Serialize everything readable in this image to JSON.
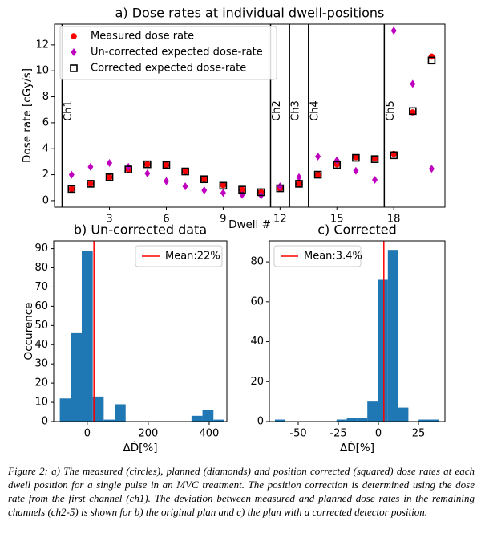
{
  "chart_data": [
    {
      "type": "scatter",
      "title": "a) Dose rates at individual dwell-positions",
      "x_label": "Dwell #",
      "y_label": "Dose rate [cGy/s]",
      "x": [
        1,
        2,
        3,
        4,
        5,
        6,
        7,
        8,
        9,
        10,
        11,
        12,
        13,
        14,
        15,
        16,
        17,
        18,
        19,
        20
      ],
      "series": [
        {
          "name": "Measured dose rate",
          "color": "#ff0000",
          "marker": "circle",
          "values": [
            0.9,
            1.3,
            1.8,
            2.4,
            2.8,
            2.75,
            2.25,
            1.65,
            1.2,
            0.85,
            0.65,
            0.95,
            1.3,
            2.0,
            2.8,
            3.35,
            3.25,
            3.6,
            6.8,
            11.1
          ]
        },
        {
          "name": "Un-corrected expected dose-rate",
          "color": "#bf00bf",
          "marker": "diamond",
          "values": [
            2.0,
            2.6,
            2.9,
            2.6,
            2.1,
            1.5,
            1.1,
            0.8,
            0.6,
            0.45,
            0.4,
            1.1,
            1.8,
            3.4,
            3.1,
            2.3,
            1.6,
            13.1,
            9.0,
            2.45
          ]
        },
        {
          "name": "Corrected expected dose-rate",
          "color": "#000000",
          "marker": "square",
          "values": [
            0.9,
            1.3,
            1.8,
            2.4,
            2.8,
            2.75,
            2.25,
            1.65,
            1.15,
            0.85,
            0.65,
            0.95,
            1.3,
            2.0,
            2.75,
            3.3,
            3.2,
            3.5,
            6.9,
            10.8
          ]
        }
      ],
      "xlim": [
        0.1,
        20.7
      ],
      "ylim": [
        -0.5,
        13.6
      ],
      "xticks": [
        3,
        6,
        9,
        12,
        15,
        18
      ],
      "yticks": [
        0,
        2,
        4,
        6,
        8,
        10,
        12
      ],
      "legend": "upper left",
      "channels": [
        {
          "x": 0.5,
          "label": "Ch1"
        },
        {
          "x": 11.5,
          "label": "Ch2"
        },
        {
          "x": 12.5,
          "label": "Ch3"
        },
        {
          "x": 13.5,
          "label": "Ch4"
        },
        {
          "x": 17.5,
          "label": "Ch5"
        }
      ]
    },
    {
      "type": "histogram",
      "title": "b) Un-corrected data",
      "x_label": "ΔḊ[%]",
      "y_label": "Occurence",
      "bins": [
        -90,
        -54,
        -18,
        18,
        54,
        90,
        126,
        162,
        198,
        234,
        270,
        306,
        342,
        378,
        414,
        450
      ],
      "counts": [
        12,
        46,
        89,
        13,
        1,
        9,
        0,
        0,
        0,
        0,
        0,
        0,
        3,
        6,
        1
      ],
      "color": "#1f77b4",
      "xlim": [
        -110,
        458
      ],
      "ylim": [
        0,
        94
      ],
      "xticks": [
        0,
        200,
        400
      ],
      "yticks": [
        0,
        10,
        20,
        30,
        40,
        50,
        60,
        70,
        80,
        90
      ],
      "mean": {
        "value": 22,
        "label": "Mean:22%",
        "color": "#ff0000"
      },
      "legend": "upper right"
    },
    {
      "type": "histogram",
      "title": "c) Corrected",
      "x_label": "ΔḊ[%]",
      "bins": [
        -64.5,
        -58.1,
        -51.7,
        -45.3,
        -38.9,
        -32.5,
        -26.1,
        -19.7,
        -13.3,
        -6.9,
        -0.5,
        5.9,
        12.3,
        18.7,
        25.1,
        31.5,
        37.9
      ],
      "counts": [
        1,
        0,
        0,
        0,
        0,
        0,
        1,
        2,
        2,
        10,
        71,
        86,
        7,
        0,
        1,
        1
      ],
      "color": "#1f77b4",
      "xlim": [
        -68,
        41.5
      ],
      "ylim": [
        0,
        90.5
      ],
      "xticks": [
        -50,
        -25,
        0,
        25
      ],
      "yticks": [
        0,
        20,
        40,
        60,
        80
      ],
      "mean": {
        "value": 3.4,
        "label": "Mean:3.4%",
        "color": "#ff0000"
      },
      "legend": "upper left"
    }
  ],
  "caption": "Figure 2: a) The measured (circles), planned (diamonds) and position corrected (squared) dose rates at each dwell position for a single pulse in an MVC treatment. The position correction is determined using the dose rate from the first channel (ch1). The deviation between measured and planned dose rates in the remaining channels (ch2-5) is shown for b) the original plan and c) the plan with a corrected detector position."
}
